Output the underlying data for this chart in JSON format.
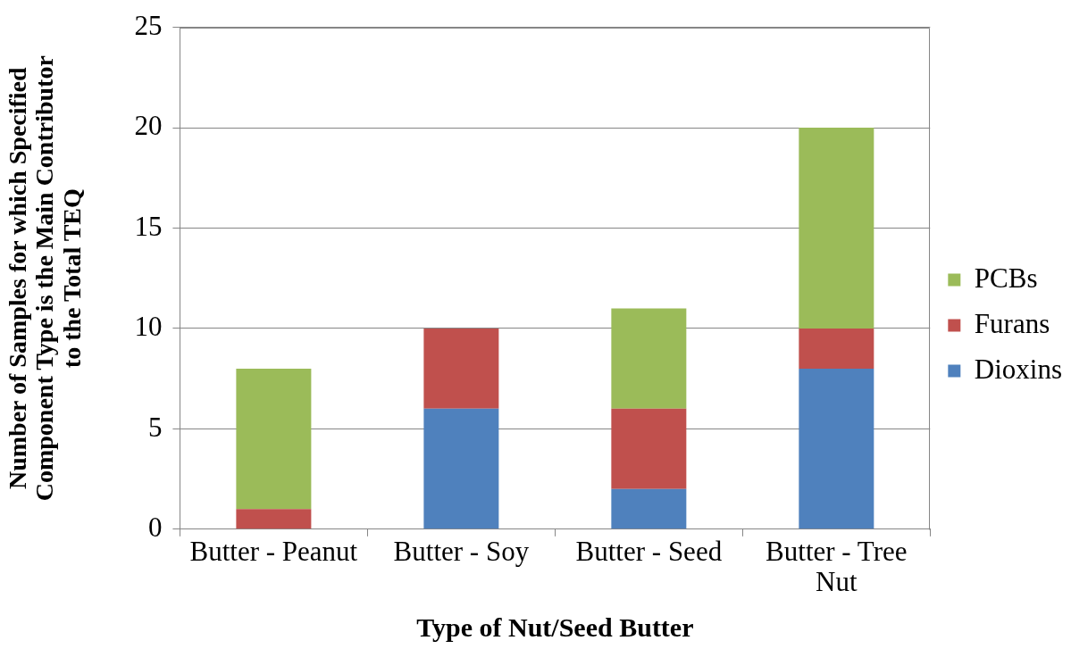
{
  "chart_data": {
    "type": "bar",
    "stacked": true,
    "xlabel": "Type of Nut/Seed Butter",
    "ylabel": "Number of Samples for which Specified Component Type is the Main Contributor to the Total TEQ",
    "categories": [
      "Butter - Peanut",
      "Butter - Soy",
      "Butter - Seed",
      "Butter - Tree Nut"
    ],
    "series": [
      {
        "name": "Dioxins",
        "color": "#4f81bd",
        "values": [
          0,
          6,
          2,
          8
        ]
      },
      {
        "name": "Furans",
        "color": "#c0504d",
        "values": [
          1,
          4,
          4,
          2
        ]
      },
      {
        "name": "PCBs",
        "color": "#9bbb59",
        "values": [
          7,
          0,
          5,
          10
        ]
      }
    ],
    "ylim": [
      0,
      25
    ],
    "yticks": [
      0,
      5,
      10,
      15,
      20,
      25
    ],
    "grid": "y",
    "legend": "right"
  }
}
